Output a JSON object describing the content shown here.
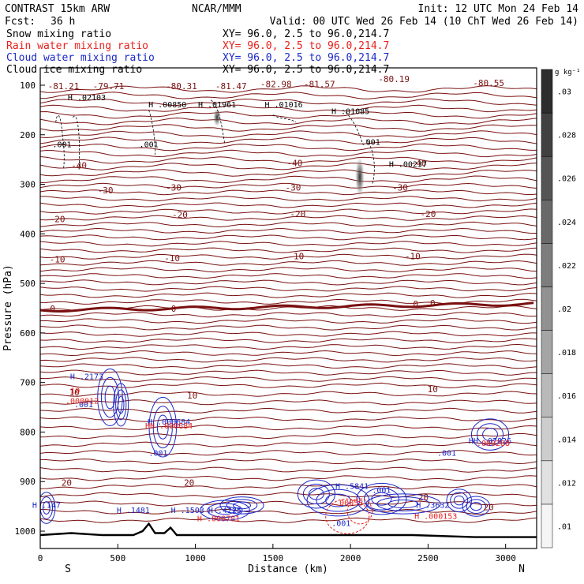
{
  "header": {
    "model": "CONTRAST 15km ARW",
    "center": "NCAR/MMM",
    "init": "Init: 12 UTC Mon 24 Feb 14",
    "fcst_label": "Fcst:",
    "fcst_value": "36 h",
    "valid": "Valid: 00 UTC Wed 26 Feb 14 (10 ChT Wed 26 Feb 14)"
  },
  "fields": [
    {
      "name": "Snow mixing ratio",
      "xy": "XY=  96.0,  2.5 to  96.0,214.7",
      "color": "#000000"
    },
    {
      "name": "Rain water mixing ratio",
      "xy": "XY=  96.0,  2.5 to  96.0,214.7",
      "color": "#e8201c"
    },
    {
      "name": "Cloud water mixing ratio",
      "xy": "XY=  96.0,  2.5 to  96.0,214.7",
      "color": "#1c28c8"
    },
    {
      "name": "Cloud ice mixing ratio",
      "xy": "XY=  96.0,  2.5 to  96.0,214.7",
      "color": "#000000"
    }
  ],
  "colors": {
    "isotherm": "#7a1010",
    "rain": "#e8201c",
    "cloud": "#1c28c8",
    "terrain": "#000000"
  },
  "chart_data": {
    "type": "contour",
    "xlabel": "Distance (km)",
    "ylabel": "Pressure (hPa)",
    "xlim": [
      0,
      3200
    ],
    "ylim": [
      1035,
      65
    ],
    "xticks": [
      0,
      500,
      1000,
      1500,
      2000,
      2500,
      3000
    ],
    "yticks": [
      100,
      200,
      300,
      400,
      500,
      600,
      700,
      800,
      900,
      1000
    ],
    "x_end_labels": {
      "left": "S",
      "right": "N"
    },
    "colorbar": {
      "unit": "g kg⁻¹",
      "ticks": [
        ".01",
        ".012",
        ".014",
        ".016",
        ".018",
        ".02",
        ".022",
        ".024",
        ".026",
        ".028",
        ".03"
      ]
    },
    "isotherm_labels": [
      {
        "text": "-40",
        "x": 250,
        "p": 268
      },
      {
        "text": "-40",
        "x": 1640,
        "p": 263
      },
      {
        "text": "-40",
        "x": 2440,
        "p": 263
      },
      {
        "text": "-30",
        "x": 420,
        "p": 318
      },
      {
        "text": "-30",
        "x": 860,
        "p": 313
      },
      {
        "text": "-30",
        "x": 1630,
        "p": 313
      },
      {
        "text": "-30",
        "x": 2320,
        "p": 313
      },
      {
        "text": "-20",
        "x": 110,
        "p": 376
      },
      {
        "text": "-20",
        "x": 900,
        "p": 368
      },
      {
        "text": "-20",
        "x": 1660,
        "p": 366
      },
      {
        "text": "-20",
        "x": 2500,
        "p": 366
      },
      {
        "text": "-10",
        "x": 110,
        "p": 458
      },
      {
        "text": "-10",
        "x": 850,
        "p": 455
      },
      {
        "text": "-10",
        "x": 1650,
        "p": 451
      },
      {
        "text": "-10",
        "x": 2400,
        "p": 451
      },
      {
        "text": "0",
        "x": 80,
        "p": 557
      },
      {
        "text": "0",
        "x": 860,
        "p": 557
      },
      {
        "text": "0",
        "x": 2420,
        "p": 548
      },
      {
        "text": "0",
        "x": 2530,
        "p": 546
      },
      {
        "text": "10",
        "x": 220,
        "p": 726
      },
      {
        "text": "10",
        "x": 980,
        "p": 732
      },
      {
        "text": "10",
        "x": 2530,
        "p": 720
      },
      {
        "text": "20",
        "x": 170,
        "p": 908
      },
      {
        "text": "20",
        "x": 960,
        "p": 908
      },
      {
        "text": "20",
        "x": 2470,
        "p": 938
      },
      {
        "text": "20",
        "x": 2890,
        "p": 958
      }
    ],
    "low_labels": [
      {
        "text": "-81.21",
        "x": 150,
        "p": 108
      },
      {
        "text": "-79.71",
        "x": 440,
        "p": 108
      },
      {
        "text": "-80.31",
        "x": 910,
        "p": 108
      },
      {
        "text": "-81.47",
        "x": 1230,
        "p": 108
      },
      {
        "text": "-82.98",
        "x": 1520,
        "p": 104
      },
      {
        "text": "-81.57",
        "x": 1800,
        "p": 104
      },
      {
        "text": "-80.19",
        "x": 2280,
        "p": 94
      },
      {
        "text": "-80.55",
        "x": 2890,
        "p": 102
      }
    ],
    "snow_labels": [
      {
        "text": "H .02103",
        "x": 300,
        "p": 130
      },
      {
        "text": "H .00850",
        "x": 820,
        "p": 145
      },
      {
        "text": "H .01961",
        "x": 1140,
        "p": 145
      },
      {
        "text": "H .01016",
        "x": 1570,
        "p": 145
      },
      {
        "text": "H .01085",
        "x": 2000,
        "p": 158
      },
      {
        "text": "H .00237",
        "x": 2370,
        "p": 265
      },
      {
        "text": ".001",
        "x": 140,
        "p": 225
      },
      {
        "text": ".001",
        "x": 700,
        "p": 225
      },
      {
        "text": ".001",
        "x": 2130,
        "p": 220
      }
    ],
    "cloud_labels": [
      {
        "text": "H .2173",
        "x": 300,
        "p": 693
      },
      {
        "text": ".001",
        "x": 280,
        "p": 750
      },
      {
        "text": "H .000684",
        "x": 830,
        "p": 785
      },
      {
        "text": ".001",
        "x": 760,
        "p": 848
      },
      {
        "text": "H .147",
        "x": 40,
        "p": 953
      },
      {
        "text": "H .1481",
        "x": 600,
        "p": 963
      },
      {
        "text": "H .1503",
        "x": 950,
        "p": 963
      },
      {
        "text": "H .4225",
        "x": 1190,
        "p": 963
      },
      {
        "text": "H .5841",
        "x": 2010,
        "p": 915
      },
      {
        "text": ".001",
        "x": 2200,
        "p": 923
      },
      {
        "text": ".001",
        "x": 1940,
        "p": 990
      },
      {
        "text": ".001",
        "x": 2620,
        "p": 848
      },
      {
        "text": "H .3632",
        "x": 2530,
        "p": 953
      },
      {
        "text": "HH .07826",
        "x": 2900,
        "p": 823
      }
    ],
    "rain_labels": [
      {
        "text": "10",
        "x": 225,
        "p": 722
      },
      {
        "text": ".000012",
        "x": 270,
        "p": 743
      },
      {
        "text": "HH .000684",
        "x": 830,
        "p": 793
      },
      {
        "text": "H .000781",
        "x": 1150,
        "p": 980
      },
      {
        "text": ".00053",
        "x": 1990,
        "p": 948
      },
      {
        "text": "H .000153",
        "x": 2550,
        "p": 975
      },
      {
        "text": ".000288",
        "x": 2920,
        "p": 828
      }
    ],
    "terrain_p": [
      [
        0,
        1008
      ],
      [
        200,
        1004
      ],
      [
        400,
        1008
      ],
      [
        600,
        1008
      ],
      [
        660,
        1000
      ],
      [
        700,
        985
      ],
      [
        740,
        1004
      ],
      [
        800,
        1004
      ],
      [
        840,
        993
      ],
      [
        880,
        1008
      ],
      [
        1200,
        1008
      ],
      [
        1600,
        1008
      ],
      [
        2000,
        1008
      ],
      [
        2400,
        1008
      ],
      [
        2800,
        1012
      ],
      [
        3200,
        1012
      ]
    ],
    "snow_max": [
      {
        "x": 1140,
        "p": 165,
        "value": 0.016
      },
      {
        "x": 2060,
        "p": 285,
        "value": 0.03
      }
    ]
  }
}
